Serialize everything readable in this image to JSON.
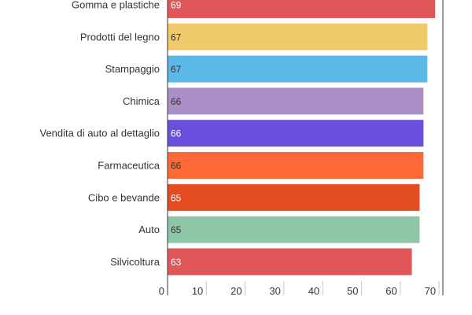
{
  "chart_data": {
    "type": "bar",
    "orientation": "horizontal",
    "categories": [
      "Gomma e plastiche",
      "Prodotti del legno",
      "Stampaggio",
      "Chimica",
      "Vendita di auto al dettaglio",
      "Farmaceutica",
      "Cibo e bevande",
      "Auto",
      "Silvicoltura"
    ],
    "values": [
      69,
      67,
      67,
      66,
      66,
      66,
      65,
      65,
      63
    ],
    "bar_colors": [
      "#e05759",
      "#f0c96b",
      "#5cb8e6",
      "#ab90c8",
      "#6a4fdc",
      "#fd6a37",
      "#e34c20",
      "#8ec6a7",
      "#e05759"
    ],
    "value_label_colors": [
      "#ffffff",
      "#333333",
      "#333333",
      "#333333",
      "#ffffff",
      "#333333",
      "#ffffff",
      "#333333",
      "#ffffff"
    ],
    "x_ticks": [
      0,
      10,
      20,
      30,
      40,
      50,
      60,
      70
    ],
    "xlim": [
      0,
      71
    ],
    "grid": false,
    "axis_color": "#333333"
  }
}
